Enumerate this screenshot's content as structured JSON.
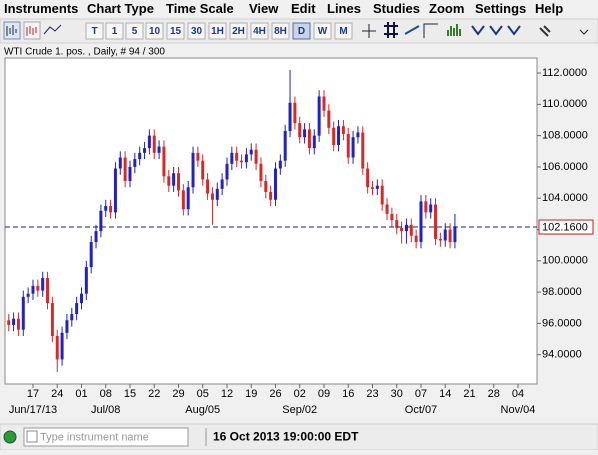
{
  "menu": [
    "Instruments",
    "Chart Type",
    "Time Scale",
    "View",
    "Edit",
    "Lines",
    "Studies",
    "Zoom",
    "Settings",
    "Help"
  ],
  "toolbar": {
    "timeframes": [
      "T",
      "1",
      "5",
      "10",
      "15",
      "30",
      "1H",
      "2H",
      "4H",
      "8H",
      "D",
      "W",
      "M"
    ]
  },
  "chart_data": {
    "type": "candlestick",
    "title": "WTI Crude 1. pos. , Daily, # 94 / 300",
    "up_color": "#2222c0",
    "down_color": "#d42a2a",
    "x": [
      -5,
      -4,
      -3,
      -2,
      -1,
      0,
      1,
      2,
      3,
      4,
      5,
      6,
      7,
      8,
      9,
      10,
      11,
      12,
      13,
      14,
      15,
      16,
      17,
      18,
      19,
      20,
      21,
      22,
      23,
      24,
      25,
      26,
      27,
      28,
      29,
      30,
      31,
      32,
      33,
      34,
      35,
      36,
      37,
      38,
      39,
      40,
      41,
      42,
      43,
      44,
      45,
      46,
      47,
      48,
      49,
      50,
      51,
      52,
      53,
      54,
      55,
      56,
      57,
      58,
      59,
      60,
      61,
      62,
      63,
      64,
      65,
      66,
      67,
      68,
      69,
      70,
      71,
      72,
      73,
      74,
      75,
      76,
      77,
      78,
      79,
      80,
      81,
      82,
      83,
      84,
      85,
      86,
      87
    ],
    "open": [
      96.2,
      95.9,
      96.3,
      95.6,
      97.7,
      97.9,
      98.4,
      98.1,
      98.9,
      97.3,
      95.2,
      93.7,
      95.4,
      96.2,
      96.6,
      97.3,
      97.9,
      99.6,
      101.2,
      101.9,
      103.2,
      103.5,
      103.1,
      105.9,
      106.6,
      105.1,
      106.0,
      106.5,
      106.9,
      107.2,
      108.0,
      106.9,
      107.3,
      105.4,
      104.8,
      105.6,
      104.5,
      103.3,
      104.7,
      106.9,
      106.4,
      105.2,
      104.3,
      103.9,
      104.6,
      105.2,
      106.2,
      106.9,
      106.4,
      106.3,
      106.8,
      107.1,
      106.2,
      105.1,
      104.4,
      103.9,
      105.9,
      106.4,
      108.3,
      110.1,
      108.8,
      107.9,
      108.4,
      107.2,
      108.0,
      110.5,
      109.6,
      108.5,
      107.4,
      108.6,
      108.1,
      106.6,
      107.9,
      108.2,
      105.9,
      104.7,
      104.6,
      104.8,
      103.6,
      103.0,
      102.6,
      102.1,
      101.9,
      102.3,
      101.6,
      101.2,
      103.8,
      103.1,
      103.6,
      101.4,
      101.3,
      102.0,
      101.2
    ],
    "high": [
      96.6,
      96.7,
      96.7,
      98.1,
      98.3,
      98.8,
      98.8,
      99.3,
      99.3,
      97.7,
      95.6,
      95.8,
      96.6,
      97.0,
      97.7,
      98.3,
      100.0,
      101.6,
      102.3,
      103.6,
      103.9,
      103.9,
      106.3,
      107.0,
      107.0,
      106.4,
      106.9,
      107.3,
      107.6,
      108.4,
      108.4,
      107.7,
      107.7,
      105.8,
      106.0,
      106.0,
      104.9,
      105.1,
      107.3,
      107.3,
      106.8,
      105.6,
      104.7,
      105.0,
      105.6,
      106.6,
      107.3,
      107.3,
      106.8,
      107.2,
      107.5,
      107.5,
      106.6,
      105.5,
      104.8,
      106.3,
      106.8,
      108.7,
      112.2,
      110.5,
      109.2,
      108.8,
      108.8,
      108.4,
      110.9,
      110.9,
      110.0,
      108.9,
      109.0,
      109.0,
      108.5,
      108.3,
      108.6,
      108.6,
      106.3,
      105.1,
      105.2,
      105.2,
      104.0,
      103.4,
      103.0,
      102.5,
      102.7,
      102.7,
      102.0,
      104.2,
      104.2,
      104.0,
      104.0,
      101.8,
      102.4,
      102.4,
      103.0
    ],
    "low": [
      95.5,
      95.5,
      95.2,
      95.2,
      97.3,
      97.5,
      97.7,
      97.7,
      96.9,
      94.8,
      92.9,
      93.3,
      95.0,
      95.8,
      96.2,
      96.9,
      97.5,
      99.2,
      100.8,
      101.5,
      102.8,
      102.7,
      102.7,
      105.5,
      104.7,
      104.7,
      105.6,
      106.1,
      106.5,
      106.8,
      106.5,
      106.5,
      105.0,
      104.4,
      104.4,
      104.1,
      102.9,
      102.9,
      104.3,
      106.0,
      104.8,
      103.9,
      102.3,
      103.5,
      104.2,
      104.8,
      105.8,
      106.0,
      105.9,
      105.9,
      106.4,
      105.8,
      104.7,
      104.0,
      103.5,
      103.5,
      105.5,
      106.0,
      107.9,
      108.4,
      107.5,
      107.5,
      106.8,
      106.8,
      107.6,
      109.2,
      108.1,
      107.0,
      107.0,
      107.7,
      106.2,
      106.2,
      107.5,
      105.5,
      104.3,
      104.2,
      104.2,
      103.2,
      102.6,
      102.2,
      101.7,
      101.1,
      101.1,
      101.2,
      100.8,
      100.8,
      102.7,
      102.7,
      101.0,
      100.9,
      100.9,
      100.8,
      100.8
    ],
    "close": [
      95.9,
      96.3,
      95.6,
      97.7,
      97.9,
      98.4,
      98.1,
      98.9,
      97.3,
      95.2,
      93.7,
      95.4,
      96.2,
      96.6,
      97.3,
      97.9,
      99.6,
      101.2,
      101.9,
      103.2,
      103.5,
      103.1,
      105.9,
      106.6,
      105.1,
      106.0,
      106.5,
      106.9,
      107.2,
      108.0,
      106.9,
      107.3,
      105.4,
      104.8,
      105.6,
      104.5,
      103.3,
      104.7,
      106.9,
      106.4,
      105.2,
      104.3,
      103.9,
      104.6,
      105.2,
      106.2,
      106.9,
      106.4,
      106.3,
      106.8,
      107.1,
      106.2,
      105.1,
      104.4,
      103.9,
      105.9,
      106.4,
      108.3,
      110.1,
      108.8,
      107.9,
      108.4,
      107.2,
      108.0,
      110.5,
      109.6,
      108.5,
      107.4,
      108.6,
      108.1,
      106.6,
      107.9,
      108.2,
      105.9,
      104.7,
      104.6,
      104.8,
      103.6,
      103.0,
      102.6,
      102.1,
      101.9,
      102.3,
      101.6,
      101.2,
      103.8,
      103.1,
      103.6,
      101.4,
      101.3,
      102.0,
      101.2,
      102.2
    ],
    "last_price": {
      "value": 102.16,
      "label": "102.1600"
    },
    "xlim": [
      -5.77,
      103.92
    ],
    "xticks": [
      {
        "value": 0,
        "label": "17"
      },
      {
        "value": 5,
        "label": "24"
      },
      {
        "value": 10,
        "label": "01"
      },
      {
        "value": 15,
        "label": "08"
      },
      {
        "value": 20,
        "label": "15"
      },
      {
        "value": 25,
        "label": "22"
      },
      {
        "value": 30,
        "label": "29"
      },
      {
        "value": 35,
        "label": "05"
      },
      {
        "value": 40,
        "label": "12"
      },
      {
        "value": 45,
        "label": "19"
      },
      {
        "value": 50,
        "label": "26"
      },
      {
        "value": 55,
        "label": "02"
      },
      {
        "value": 60,
        "label": "09"
      },
      {
        "value": 65,
        "label": "16"
      },
      {
        "value": 70,
        "label": "23"
      },
      {
        "value": 75,
        "label": "30"
      },
      {
        "value": 80,
        "label": "07"
      },
      {
        "value": 85,
        "label": "14"
      },
      {
        "value": 90,
        "label": "21"
      },
      {
        "value": 95,
        "label": "28"
      },
      {
        "value": 100,
        "label": "04"
      }
    ],
    "xticks_major": [
      {
        "value": 0,
        "label": "Jun/17/13"
      },
      {
        "value": 15,
        "label": "Jul/08"
      },
      {
        "value": 35,
        "label": "Aug/05"
      },
      {
        "value": 55,
        "label": "Sep/02"
      },
      {
        "value": 80,
        "label": "Oct/07"
      },
      {
        "value": 100,
        "label": "Nov/04"
      }
    ],
    "ylim": [
      92.13,
      112.96
    ],
    "yticks": [
      {
        "value": 94,
        "label": "94.0000"
      },
      {
        "value": 96,
        "label": "96.0000"
      },
      {
        "value": 98,
        "label": "98.0000"
      },
      {
        "value": 100,
        "label": "100.0000"
      },
      {
        "value": 102,
        "label": "102.0000"
      },
      {
        "value": 104,
        "label": "104.0000"
      },
      {
        "value": 106,
        "label": "106.0000"
      },
      {
        "value": 108,
        "label": "108.0000"
      },
      {
        "value": 110,
        "label": "110.0000"
      },
      {
        "value": 112,
        "label": "112.0000"
      }
    ]
  },
  "status": {
    "search_placeholder": "Type instrument name",
    "timestamp": "16 Oct 2013 19:00:00 EDT"
  }
}
